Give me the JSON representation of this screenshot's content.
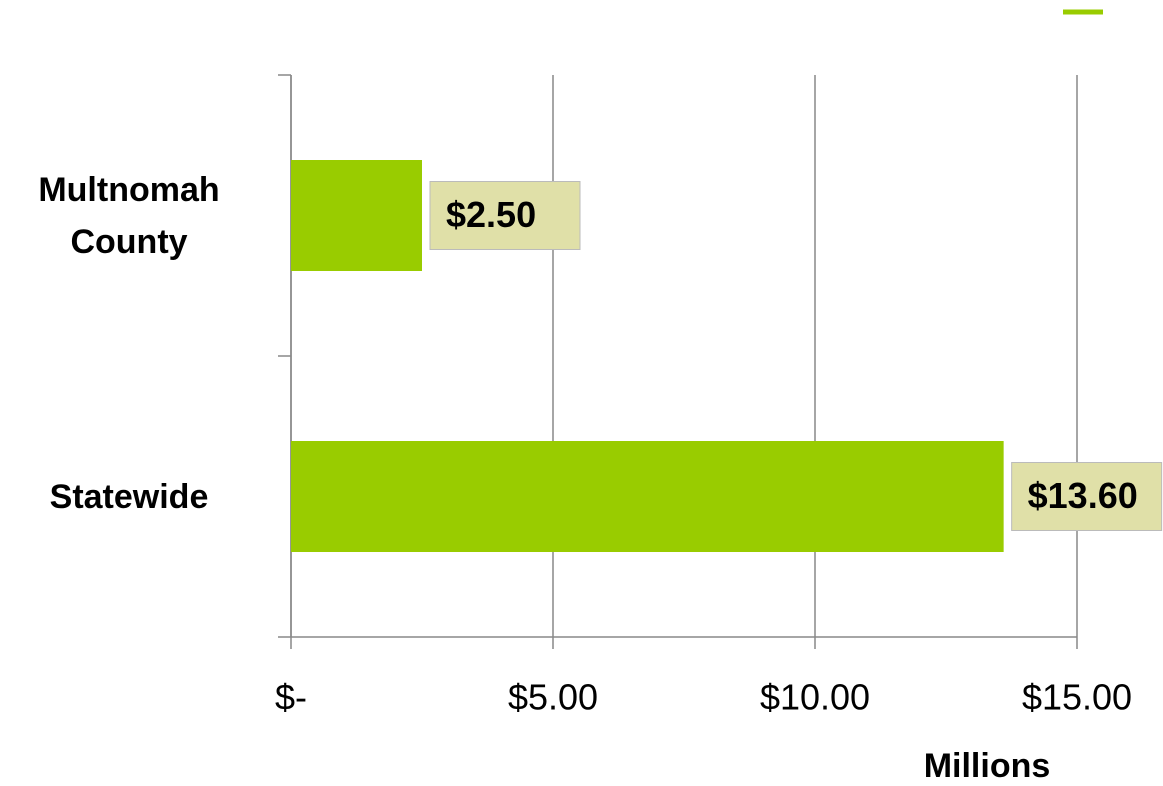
{
  "chart_data": {
    "type": "bar",
    "orientation": "horizontal",
    "categories": [
      "Multnomah County",
      "Statewide"
    ],
    "values": [
      2.5,
      13.6
    ],
    "value_labels": [
      "$2.50",
      "$13.60"
    ],
    "color": "#99cc00",
    "x_label": "Millions",
    "xlim": [
      0,
      15
    ],
    "xticks": [
      {
        "value": 0,
        "label": "$-"
      },
      {
        "value": 5,
        "label": "$5.00"
      },
      {
        "value": 10,
        "label": "$10.00"
      },
      {
        "value": 15,
        "label": "$15.00"
      }
    ],
    "grid": true
  }
}
